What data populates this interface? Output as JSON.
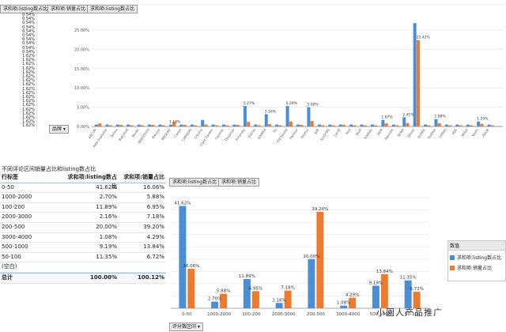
{
  "top_left": {
    "field_header": "求和项:listing数占比",
    "values": [
      "0.54%",
      "0.54%",
      "0.54%",
      "0.54%",
      "0.54%",
      "0.54%",
      "0.54%",
      "0.54%",
      "0.54%",
      "0.54%",
      "1.62%",
      "1.62%",
      "1.62%",
      "1.62%",
      "1.62%",
      "1.62%",
      "1.62%",
      "1.62%",
      "1.62%",
      "1.62%",
      "1.62%",
      "1.62%",
      "1.62%",
      "1.62%",
      "1.62%",
      "1.62%",
      "1.62%",
      "1.62%"
    ],
    "filter_button": "品牌 ▾"
  },
  "top_chart": {
    "field_buttons": [
      "求和项:销量占比",
      "求和项:listing数占比"
    ],
    "yticks": [
      "25.00%",
      "20.00%",
      "15.00%",
      "10.00%",
      "5.00%",
      "0.00%"
    ],
    "peak_labels": [
      "26.84%",
      "22.42%",
      "5.27%",
      "5.29%",
      "5.00%",
      "3.16%",
      "2.41%",
      "1.67%",
      "1.88%",
      "1.25%",
      "1.19%"
    ],
    "x_labels": [
      "ABCUN",
      "Aide Euphoria",
      "Arriax",
      "Babyfast",
      "Boxiki",
      "BOSSTECH",
      "Blesiya",
      "BOSEAO",
      "Cacao",
      "CAMKIPO",
      "Chicmy",
      "Clyst Garden",
      "Cozmos",
      "Dayanuo",
      "Emanaly",
      "Eitmia",
      "GAMMA",
      "Gr",
      "GQ Sound",
      "Hanhun",
      "Huahui",
      "JOR",
      "KLIOTOS",
      "Lanfit",
      "MiYi",
      "MUH",
      "Nosbeu",
      "OEM",
      "Panmire",
      "SEIKA",
      "Shinin",
      "SUHEE",
      "Tonitter",
      "UMIAS",
      "VQX",
      "Wiiya",
      "Yesim",
      "ZOUB"
    ]
  },
  "pivot": {
    "title": "不同评论区间销量占比和listing数占比",
    "headers": [
      "行标签",
      "求和项:listing数占比",
      "求和项:销量占比"
    ],
    "rows": [
      [
        "0-50",
        "41.62%",
        "16.06%"
      ],
      [
        "1000-2000",
        "2.70%",
        "5.88%"
      ],
      [
        "100-200",
        "11.89%",
        "6.95%"
      ],
      [
        "2000-3000",
        "2.16%",
        "7.18%"
      ],
      [
        "200-500",
        "20.00%",
        "39.20%"
      ],
      [
        "3000-4000",
        "1.08%",
        "4.29%"
      ],
      [
        "500-1000",
        "9.19%",
        "13.84%"
      ],
      [
        "50-100",
        "11.35%",
        "6.72%"
      ],
      [
        "(空白)",
        "",
        ""
      ]
    ],
    "total": [
      "总计",
      "100.00%",
      "100.12%"
    ]
  },
  "bottom_chart": {
    "field_buttons": [
      "求和项:listing数占比",
      "求和项:销量占比"
    ],
    "axis_button": "评分数区间 ▾",
    "legend_title": "数值",
    "legend_items": [
      "求和项:listing数占比",
      "求和项:销量占比"
    ],
    "colors": {
      "listing": "#4a8fd6",
      "sales": "#ee7b2d"
    },
    "chart_data": {
      "type": "bar",
      "categories": [
        "0-50",
        "1000-2000",
        "100-200",
        "2000-3000",
        "200-500",
        "3000-4000",
        "500-1000",
        "50-100"
      ],
      "series": [
        {
          "name": "求和项:listing数占比",
          "values": [
            41.62,
            2.7,
            11.89,
            2.16,
            20.0,
            1.08,
            9.19,
            11.35
          ],
          "labels": [
            "41.62%",
            "2.70%",
            "11.89%",
            "2.16%",
            "20.00%",
            "1.08%",
            "9.19%",
            "11.35%"
          ]
        },
        {
          "name": "求和项:销量占比",
          "values": [
            16.06,
            5.88,
            6.95,
            7.18,
            39.2,
            4.29,
            13.84,
            6.72
          ],
          "labels": [
            "16.06%",
            "5.88%",
            "6.95%",
            "7.18%",
            "39.20%",
            "4.29%",
            "13.84%",
            "6.72%"
          ]
        }
      ],
      "ylim": [
        0,
        45
      ]
    }
  },
  "watermark": "小園人产品推广"
}
